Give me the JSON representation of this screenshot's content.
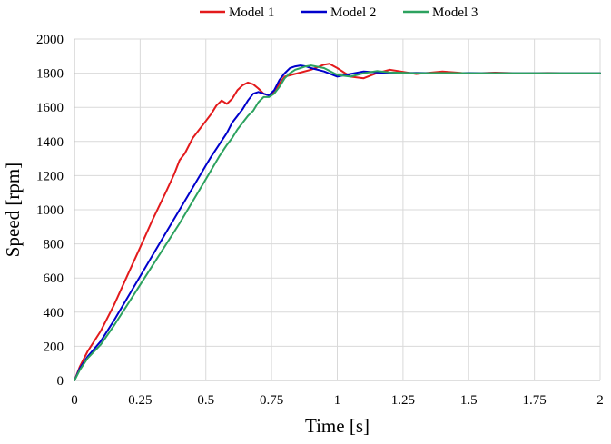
{
  "chart_data": {
    "type": "line",
    "title": "",
    "xlabel": "Time [s]",
    "ylabel": "Speed [rpm]",
    "xlim": [
      0,
      2
    ],
    "ylim": [
      0,
      2000
    ],
    "x_ticks": [
      0,
      0.25,
      0.5,
      0.75,
      1,
      1.25,
      1.5,
      1.75,
      2
    ],
    "x_tick_labels": [
      "0",
      "0.25",
      "0.5",
      "0.75",
      "1",
      "1.25",
      "1.5",
      "1.75",
      "2"
    ],
    "y_ticks": [
      0,
      200,
      400,
      600,
      800,
      1000,
      1200,
      1400,
      1600,
      1800,
      2000
    ],
    "y_tick_labels": [
      "0",
      "200",
      "400",
      "600",
      "800",
      "1000",
      "1200",
      "1400",
      "1600",
      "1800",
      "2000"
    ],
    "grid": true,
    "legend_position": "top-center",
    "series": [
      {
        "name": "Model 1",
        "color": "#e31a1c",
        "x": [
          0,
          0.02,
          0.05,
          0.1,
          0.15,
          0.2,
          0.25,
          0.3,
          0.35,
          0.38,
          0.4,
          0.42,
          0.45,
          0.48,
          0.5,
          0.52,
          0.54,
          0.56,
          0.58,
          0.6,
          0.62,
          0.64,
          0.66,
          0.68,
          0.7,
          0.72,
          0.74,
          0.76,
          0.78,
          0.8,
          0.85,
          0.9,
          0.95,
          0.97,
          1.0,
          1.05,
          1.1,
          1.15,
          1.2,
          1.3,
          1.4,
          1.5,
          1.6,
          1.7,
          1.8,
          1.9,
          2.0
        ],
        "y": [
          0,
          80,
          170,
          290,
          440,
          610,
          780,
          950,
          1110,
          1210,
          1290,
          1330,
          1420,
          1480,
          1520,
          1560,
          1610,
          1640,
          1620,
          1650,
          1700,
          1730,
          1745,
          1735,
          1710,
          1680,
          1670,
          1690,
          1740,
          1780,
          1800,
          1820,
          1850,
          1855,
          1830,
          1780,
          1770,
          1800,
          1820,
          1795,
          1810,
          1798,
          1803,
          1799,
          1801,
          1800,
          1800
        ]
      },
      {
        "name": "Model 2",
        "color": "#0000cc",
        "x": [
          0,
          0.02,
          0.05,
          0.1,
          0.15,
          0.2,
          0.25,
          0.3,
          0.35,
          0.4,
          0.45,
          0.5,
          0.52,
          0.55,
          0.58,
          0.6,
          0.62,
          0.64,
          0.66,
          0.68,
          0.7,
          0.72,
          0.74,
          0.76,
          0.78,
          0.8,
          0.82,
          0.84,
          0.86,
          0.88,
          0.9,
          0.95,
          1.0,
          1.05,
          1.1,
          1.15,
          1.2,
          1.3,
          1.4,
          1.5,
          1.6,
          1.8,
          2.0
        ],
        "y": [
          0,
          70,
          140,
          230,
          350,
          480,
          610,
          740,
          870,
          1000,
          1130,
          1260,
          1310,
          1380,
          1450,
          1510,
          1550,
          1590,
          1640,
          1680,
          1690,
          1680,
          1670,
          1700,
          1760,
          1800,
          1830,
          1840,
          1845,
          1840,
          1830,
          1810,
          1780,
          1795,
          1810,
          1805,
          1800,
          1802,
          1800,
          1801,
          1800,
          1800,
          1800
        ]
      },
      {
        "name": "Model 3",
        "color": "#2ca25f",
        "x": [
          0,
          0.02,
          0.05,
          0.1,
          0.15,
          0.2,
          0.25,
          0.3,
          0.35,
          0.4,
          0.45,
          0.5,
          0.55,
          0.58,
          0.6,
          0.62,
          0.64,
          0.66,
          0.68,
          0.7,
          0.72,
          0.74,
          0.76,
          0.78,
          0.8,
          0.82,
          0.84,
          0.86,
          0.88,
          0.9,
          0.95,
          1.0,
          1.05,
          1.1,
          1.15,
          1.2,
          1.3,
          1.4,
          1.5,
          1.6,
          1.8,
          2.0
        ],
        "y": [
          0,
          60,
          130,
          210,
          320,
          440,
          560,
          680,
          800,
          920,
          1050,
          1180,
          1310,
          1380,
          1420,
          1470,
          1510,
          1550,
          1580,
          1630,
          1660,
          1660,
          1680,
          1720,
          1770,
          1800,
          1820,
          1830,
          1840,
          1845,
          1830,
          1790,
          1780,
          1800,
          1812,
          1805,
          1800,
          1801,
          1800,
          1800,
          1800,
          1800
        ]
      }
    ]
  }
}
